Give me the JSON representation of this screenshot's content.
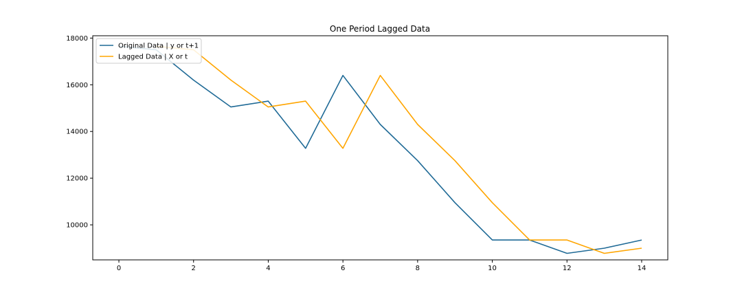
{
  "chart_data": {
    "type": "line",
    "title": "One Period Lagged Data",
    "xlabel": "",
    "ylabel": "",
    "xlim": [
      -0.7,
      14.7
    ],
    "ylim": [
      8500,
      18100
    ],
    "xticks": [
      0,
      2,
      4,
      6,
      8,
      10,
      12,
      14
    ],
    "yticks": [
      10000,
      12000,
      14000,
      16000,
      18000
    ],
    "grid": false,
    "legend_position": "top-left",
    "series": [
      {
        "name": "Original Data | y or t+1",
        "color": "#1f6a96",
        "x": [
          0,
          1,
          2,
          3,
          4,
          5,
          6,
          7,
          8,
          9,
          10,
          11,
          12,
          13,
          14
        ],
        "values": [
          17650,
          17500,
          16200,
          15050,
          15300,
          13280,
          16400,
          14300,
          12750,
          10950,
          9350,
          9350,
          8780,
          9000,
          9350
        ]
      },
      {
        "name": "Lagged Data | X or t",
        "color": "#ffa500",
        "x": [
          1,
          2,
          3,
          4,
          5,
          6,
          7,
          8,
          9,
          10,
          11,
          12,
          13,
          14
        ],
        "values": [
          17650,
          17500,
          16200,
          15050,
          15300,
          13280,
          16400,
          14300,
          12750,
          10950,
          9350,
          9350,
          8780,
          9000
        ]
      }
    ]
  }
}
